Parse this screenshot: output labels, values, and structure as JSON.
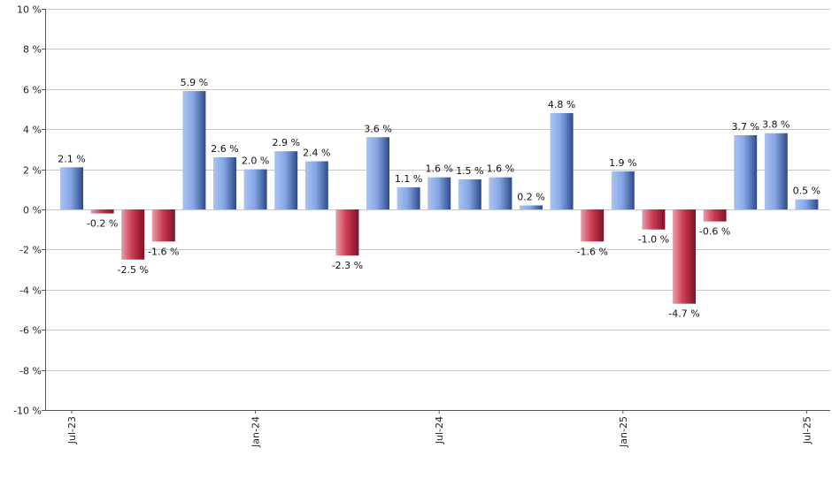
{
  "chart_data": {
    "type": "bar",
    "title": "",
    "xlabel": "",
    "ylabel": "",
    "ylim": [
      -10,
      10
    ],
    "y_ticks": [
      -10,
      -8,
      -6,
      -4,
      -2,
      0,
      2,
      4,
      6,
      8,
      10
    ],
    "y_tick_labels": [
      "-10 %",
      "-8 %",
      "-6 %",
      "-4 %",
      "-2 %",
      "0 %",
      "2 %",
      "4 %",
      "6 %",
      "8 %",
      "10 %"
    ],
    "x_tick_labels": [
      "Jul-23",
      "Jan-24",
      "Jul-24",
      "Jan-25",
      "Jul-25"
    ],
    "grid": "horizontal",
    "legend": "none",
    "categories": [
      "Jul-23",
      "Aug-23",
      "Sep-23",
      "Oct-23",
      "Nov-23",
      "Dec-23",
      "Jan-24",
      "Feb-24",
      "Mar-24",
      "Apr-24",
      "May-24",
      "Jun-24",
      "Jul-24",
      "Aug-24",
      "Sep-24",
      "Oct-24",
      "Nov-24",
      "Dec-24",
      "Jan-25",
      "Feb-25",
      "Mar-25",
      "Apr-25",
      "May-25",
      "Jun-25",
      "Jul-25"
    ],
    "values": [
      2.1,
      -0.2,
      -2.5,
      -1.6,
      5.9,
      2.6,
      2.0,
      2.9,
      2.4,
      -2.3,
      3.6,
      1.1,
      1.6,
      1.5,
      1.6,
      0.2,
      4.8,
      -1.6,
      1.9,
      -1.0,
      -4.7,
      -0.6,
      3.7,
      3.8,
      0.5
    ],
    "data_labels": [
      "2.1 %",
      "-0.2 %",
      "-2.5 %",
      "-1.6 %",
      "5.9 %",
      "2.6 %",
      "2.0 %",
      "2.9 %",
      "2.4 %",
      "-2.3 %",
      "3.6 %",
      "1.1 %",
      "1.6 %",
      "1.5 %",
      "1.6 %",
      "0.2 %",
      "4.8 %",
      "-1.6 %",
      "1.9 %",
      "-1.0 %",
      "-4.7 %",
      "-0.6 %",
      "3.7 %",
      "3.8 %",
      "0.5 %"
    ],
    "colors": {
      "positive": "#7f9fe0",
      "negative": "#c8324a",
      "grid": "#c8c8c8",
      "axis": "#555555"
    }
  }
}
